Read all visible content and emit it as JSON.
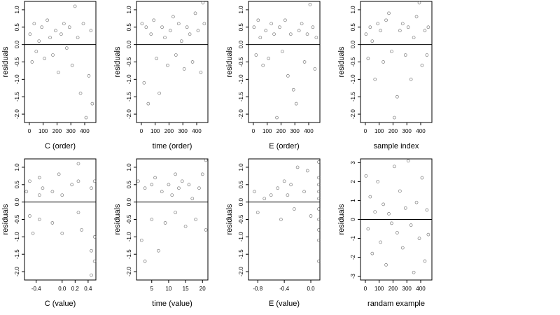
{
  "chart_data": [
    {
      "type": "scatter",
      "xlabel": "C (order)",
      "ylabel": "residuals",
      "x": [
        5,
        20,
        35,
        50,
        70,
        90,
        110,
        130,
        150,
        170,
        190,
        210,
        230,
        250,
        270,
        290,
        310,
        330,
        350,
        370,
        390,
        410,
        430,
        445,
        455
      ],
      "y": [
        0.3,
        -0.5,
        0.6,
        -0.2,
        0.1,
        0.5,
        -0.4,
        0.7,
        0.2,
        -0.3,
        0.4,
        -0.8,
        0.3,
        0.6,
        -0.1,
        0.5,
        -0.6,
        1.1,
        0.2,
        -1.4,
        0.6,
        -2.1,
        -0.9,
        0.4,
        -1.7
      ],
      "xlim": [
        -35,
        481
      ],
      "xticks": [
        0,
        100,
        200,
        300,
        400
      ],
      "ylim": [
        -2.24,
        1.24
      ],
      "yticks": [
        {
          "value": 1,
          "label": "1.0"
        },
        0.5,
        {
          "value": 0,
          "label": "0.0"
        },
        -0.5,
        {
          "value": -1,
          "label": "-1.0"
        },
        -1.5,
        {
          "value": -2,
          "label": "-2.0"
        }
      ],
      "hline": 0
    },
    {
      "type": "scatter",
      "xlabel": "time (order)",
      "ylabel": "residuals",
      "x": [
        5,
        20,
        35,
        50,
        70,
        90,
        110,
        130,
        150,
        170,
        190,
        210,
        230,
        250,
        270,
        290,
        310,
        330,
        350,
        370,
        390,
        410,
        430,
        445,
        455
      ],
      "y": [
        0.6,
        -1.1,
        0.5,
        -1.7,
        0.3,
        0.7,
        -0.4,
        -1.4,
        0.5,
        0.2,
        -0.6,
        0.4,
        0.8,
        -0.3,
        0.6,
        0.1,
        -0.7,
        0.5,
        0.3,
        -0.5,
        0.9,
        0.4,
        -0.8,
        1.2,
        0.6
      ],
      "xlim": [
        -35,
        481
      ],
      "xticks": [
        0,
        100,
        200,
        300,
        400
      ],
      "ylim": [
        -2.24,
        1.24
      ],
      "yticks": [
        {
          "value": 1,
          "label": "1.0"
        },
        0.5,
        {
          "value": 0,
          "label": "0.0"
        },
        -0.5,
        {
          "value": -1,
          "label": "-1.0"
        },
        -1.5,
        {
          "value": -2,
          "label": "-2.0"
        }
      ],
      "hline": 0
    },
    {
      "type": "scatter",
      "xlabel": "E (order)",
      "ylabel": "residuals",
      "x": [
        5,
        20,
        35,
        50,
        70,
        90,
        110,
        130,
        150,
        170,
        190,
        210,
        230,
        250,
        270,
        290,
        310,
        330,
        350,
        370,
        390,
        410,
        430,
        445,
        455
      ],
      "y": [
        0.5,
        -0.3,
        0.7,
        0.2,
        -0.6,
        0.4,
        -0.4,
        0.6,
        0.3,
        -2.1,
        0.5,
        -0.2,
        0.7,
        -0.9,
        0.3,
        -1.3,
        -1.7,
        0.4,
        0.6,
        -0.5,
        0.3,
        1.15,
        0.5,
        -0.7,
        0.2
      ],
      "xlim": [
        -35,
        481
      ],
      "xticks": [
        0,
        100,
        200,
        300,
        400
      ],
      "ylim": [
        -2.24,
        1.24
      ],
      "yticks": [
        {
          "value": 1,
          "label": "1.0"
        },
        0.5,
        {
          "value": 0,
          "label": "0.0"
        },
        -0.5,
        {
          "value": -1,
          "label": "-1.0"
        },
        -1.5,
        {
          "value": -2,
          "label": "-2.0"
        }
      ],
      "hline": 0
    },
    {
      "type": "scatter",
      "xlabel": "sample index",
      "ylabel": "residuals",
      "x": [
        5,
        20,
        35,
        50,
        70,
        90,
        110,
        130,
        150,
        170,
        190,
        210,
        230,
        250,
        270,
        290,
        310,
        330,
        350,
        370,
        390,
        410,
        430,
        445,
        455
      ],
      "y": [
        0.3,
        -0.4,
        0.5,
        0.1,
        -1.0,
        0.6,
        0.4,
        -0.5,
        0.7,
        0.9,
        -0.2,
        -2.1,
        -1.5,
        0.4,
        0.6,
        -0.3,
        0.5,
        -1.0,
        0.2,
        0.8,
        1.2,
        -0.6,
        0.4,
        -0.3,
        0.5
      ],
      "xlim": [
        -35,
        481
      ],
      "xticks": [
        0,
        100,
        200,
        300,
        400
      ],
      "ylim": [
        -2.24,
        1.24
      ],
      "yticks": [
        {
          "value": 1,
          "label": "1.0"
        },
        0.5,
        {
          "value": 0,
          "label": "0.0"
        },
        -0.5,
        {
          "value": -1,
          "label": "-1.0"
        },
        -1.5,
        {
          "value": -2,
          "label": "-2.0"
        }
      ],
      "hline": 0
    },
    {
      "type": "scatter",
      "xlabel": "C (value)",
      "ylabel": "residuals",
      "x": [
        -0.55,
        -0.5,
        -0.5,
        -0.45,
        -0.35,
        -0.35,
        -0.35,
        -0.3,
        -0.15,
        -0.15,
        -0.05,
        0.0,
        0.0,
        0.15,
        0.25,
        0.25,
        0.25,
        0.3,
        0.45,
        0.45,
        0.45,
        0.5,
        0.5,
        0.5
      ],
      "y": [
        0.3,
        -0.4,
        0.6,
        -0.9,
        0.7,
        0.2,
        -0.5,
        0.4,
        0.3,
        -0.6,
        0.8,
        -0.9,
        0.2,
        0.5,
        1.1,
        -0.3,
        0.6,
        -0.8,
        0.4,
        -1.4,
        -2.1,
        0.6,
        -1.0,
        -1.7
      ],
      "xlim": [
        -0.58,
        0.52
      ],
      "xticks": [
        -0.4,
        {
          "value": 0,
          "label": "0.0"
        },
        0.2,
        0.4
      ],
      "ylim": [
        -2.24,
        1.24
      ],
      "yticks": [
        {
          "value": 1,
          "label": "1.0"
        },
        0.5,
        {
          "value": 0,
          "label": "0.0"
        },
        -0.5,
        {
          "value": -1,
          "label": "-1.0"
        },
        -1.5,
        {
          "value": -2,
          "label": "-2.0"
        }
      ],
      "hline": 0
    },
    {
      "type": "scatter",
      "xlabel": "time (value)",
      "ylabel": "residuals",
      "x": [
        1,
        2,
        3,
        3,
        5,
        5,
        6,
        7,
        8,
        9,
        10,
        11,
        12,
        12,
        13,
        14,
        15,
        16,
        17,
        18,
        19,
        20,
        21,
        21
      ],
      "y": [
        0.6,
        -1.1,
        0.4,
        -1.7,
        0.5,
        -0.5,
        0.7,
        -1.4,
        0.3,
        -0.6,
        0.5,
        0.2,
        0.8,
        -0.3,
        0.4,
        0.6,
        -0.7,
        0.5,
        0.1,
        -0.5,
        0.4,
        0.8,
        1.2,
        -0.8
      ],
      "xlim": [
        0.5,
        21.6
      ],
      "xticks": [
        5,
        10,
        15,
        20
      ],
      "ylim": [
        -2.24,
        1.24
      ],
      "yticks": [
        {
          "value": 1,
          "label": "1.0"
        },
        0.5,
        {
          "value": 0,
          "label": "0.0"
        },
        -0.5,
        {
          "value": -1,
          "label": "-1.0"
        },
        -1.5,
        {
          "value": -2,
          "label": "-2.0"
        }
      ],
      "hline": 0
    },
    {
      "type": "scatter",
      "xlabel": "E (value)",
      "ylabel": "residuals",
      "x": [
        -0.85,
        -0.8,
        -0.7,
        -0.6,
        -0.5,
        -0.45,
        -0.4,
        -0.35,
        -0.3,
        -0.25,
        -0.2,
        -0.1,
        -0.05,
        0.0,
        0.12,
        0.12,
        0.12,
        0.12,
        0.12,
        0.12,
        0.12,
        0.12,
        0.12,
        0.12
      ],
      "y": [
        0.3,
        -0.3,
        0.1,
        0.2,
        0.4,
        -0.5,
        0.6,
        0.2,
        0.5,
        -0.2,
        1.0,
        0.3,
        0.9,
        -0.4,
        0.7,
        0.5,
        0.3,
        0.1,
        -0.2,
        -0.5,
        -0.8,
        -1.1,
        -1.7,
        1.15
      ],
      "xlim": [
        -0.94,
        0.137
      ],
      "xticks": [
        -0.8,
        -0.4,
        {
          "value": 0,
          "label": "0.0"
        }
      ],
      "ylim": [
        -2.24,
        1.24
      ],
      "yticks": [
        {
          "value": 1,
          "label": "1.0"
        },
        0.5,
        {
          "value": 0,
          "label": "0.0"
        },
        -0.5,
        {
          "value": -1,
          "label": "-1.0"
        },
        -1.5,
        {
          "value": -2,
          "label": "-2.0"
        }
      ],
      "hline": 0
    },
    {
      "type": "scatter",
      "xlabel": "randam example",
      "ylabel": "residuals",
      "x": [
        5,
        20,
        35,
        50,
        70,
        90,
        110,
        130,
        150,
        170,
        190,
        210,
        230,
        250,
        270,
        290,
        310,
        330,
        350,
        370,
        390,
        410,
        430,
        445,
        455
      ],
      "y": [
        2.3,
        -0.5,
        1.2,
        -1.8,
        0.4,
        2.0,
        -1.2,
        0.8,
        -2.4,
        0.3,
        -0.2,
        2.8,
        -0.7,
        1.5,
        -1.5,
        0.6,
        3.1,
        -0.3,
        -2.8,
        0.9,
        -1.0,
        2.2,
        -2.2,
        0.5,
        -0.8
      ],
      "xlim": [
        -35,
        481
      ],
      "xticks": [
        0,
        100,
        200,
        300,
        400
      ],
      "ylim": [
        -3.2,
        3.2
      ],
      "yticks": [
        3,
        2,
        1,
        0,
        -1,
        -2,
        -3
      ],
      "hline": 0
    }
  ]
}
